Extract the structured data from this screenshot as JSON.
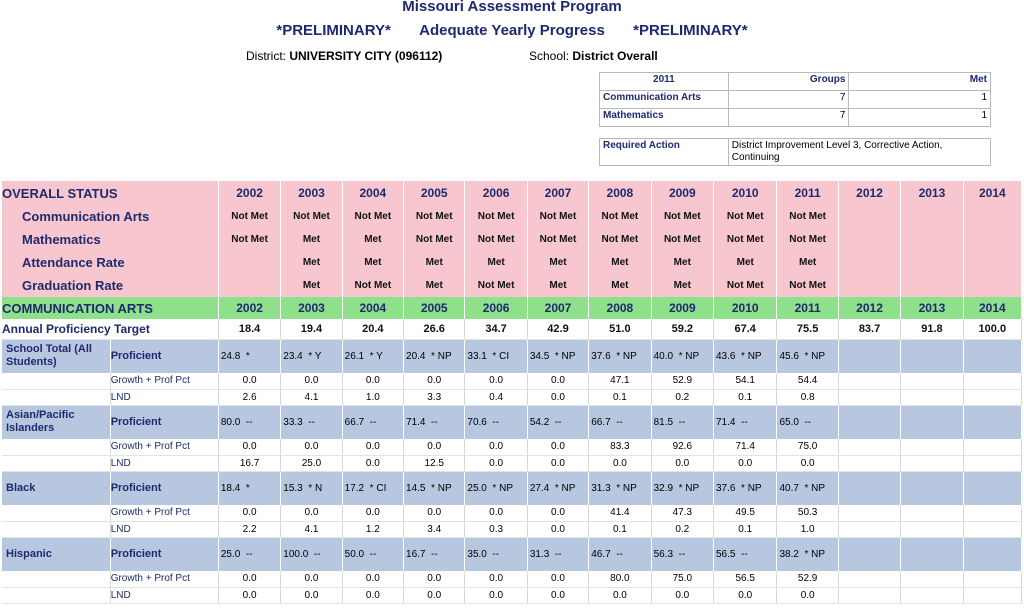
{
  "header": {
    "title": "Missouri Assessment Program",
    "subtitle_left": "*PRELIMINARY*",
    "subtitle_center": "Adequate Yearly Progress",
    "subtitle_right": "*PRELIMINARY*",
    "district_label": "District:",
    "district_value": "UNIVERSITY CITY  (096112)",
    "school_label": "School:",
    "school_value": "District Overall"
  },
  "summary": {
    "year": "2011",
    "groups_header": "Groups",
    "met_header": "Met",
    "rows": [
      {
        "label": "Communication Arts",
        "groups": "7",
        "met": "1"
      },
      {
        "label": "Mathematics",
        "groups": "7",
        "met": "1"
      }
    ],
    "required_action_label": "Required Action",
    "required_action_value": "District Improvement Level 3, Corrective Action, Continuing"
  },
  "years": [
    "2002",
    "2003",
    "2004",
    "2005",
    "2006",
    "2007",
    "2008",
    "2009",
    "2010",
    "2011",
    "2012",
    "2013",
    "2014"
  ],
  "overall": {
    "heading": "OVERALL STATUS",
    "rows": [
      {
        "label": "Communication Arts",
        "values": [
          "Not Met",
          "Not Met",
          "Not Met",
          "Not Met",
          "Not Met",
          "Not Met",
          "Not Met",
          "Not Met",
          "Not Met",
          "Not Met",
          "",
          "",
          ""
        ]
      },
      {
        "label": "Mathematics",
        "values": [
          "Not Met",
          "Met",
          "Met",
          "Not Met",
          "Not Met",
          "Not Met",
          "Not Met",
          "Not Met",
          "Not Met",
          "Not Met",
          "",
          "",
          ""
        ]
      },
      {
        "label": "Attendance Rate",
        "values": [
          "",
          "Met",
          "Met",
          "Met",
          "Met",
          "Met",
          "Met",
          "Met",
          "Met",
          "Met",
          "",
          "",
          ""
        ]
      },
      {
        "label": "Graduation Rate",
        "values": [
          "",
          "Met",
          "Not Met",
          "Met",
          "Not Met",
          "Met",
          "Met",
          "Met",
          "Not Met",
          "Not Met",
          "",
          "",
          ""
        ]
      }
    ]
  },
  "comm_arts": {
    "heading": "COMMUNICATION ARTS",
    "target_label": "Annual Proficiency Target",
    "targets": [
      "18.4",
      "19.4",
      "20.4",
      "26.6",
      "34.7",
      "42.9",
      "51.0",
      "59.2",
      "67.4",
      "75.5",
      "83.7",
      "91.8",
      "100.0"
    ],
    "proficient_label": "Proficient",
    "growth_label": "Growth + Prof Pct",
    "lnd_label": "LND",
    "groups": [
      {
        "name": "School Total (All Students)",
        "proficient": [
          "24.8  *",
          "23.4  * Y",
          "26.1  * Y",
          "20.4  * NP",
          "33.1  * CI",
          "34.5  * NP",
          "37.6  * NP",
          "40.0  * NP",
          "43.6  * NP",
          "45.6  * NP",
          "",
          "",
          ""
        ],
        "growth": [
          "0.0",
          "0.0",
          "0.0",
          "0.0",
          "0.0",
          "0.0",
          "47.1",
          "52.9",
          "54.1",
          "54.4",
          "",
          "",
          ""
        ],
        "lnd": [
          "2.6",
          "4.1",
          "1.0",
          "3.3",
          "0.4",
          "0.0",
          "0.1",
          "0.2",
          "0.1",
          "0.8",
          "",
          "",
          ""
        ]
      },
      {
        "name": "Asian/Pacific Islanders",
        "proficient": [
          "80.0  --",
          "33.3  --",
          "66.7  --",
          "71.4  --",
          "70.6  --",
          "54.2  --",
          "66.7  --",
          "81.5  --",
          "71.4  --",
          "65.0  --",
          "",
          "",
          ""
        ],
        "growth": [
          "0.0",
          "0.0",
          "0.0",
          "0.0",
          "0.0",
          "0.0",
          "83.3",
          "92.6",
          "71.4",
          "75.0",
          "",
          "",
          ""
        ],
        "lnd": [
          "16.7",
          "25.0",
          "0.0",
          "12.5",
          "0.0",
          "0.0",
          "0.0",
          "0.0",
          "0.0",
          "0.0",
          "",
          "",
          ""
        ]
      },
      {
        "name": "Black",
        "proficient": [
          "18.4  *",
          "15.3  * N",
          "17.2  * CI",
          "14.5  * NP",
          "25.0  * NP",
          "27.4  * NP",
          "31.3  * NP",
          "32.9  * NP",
          "37.6  * NP",
          "40.7  * NP",
          "",
          "",
          ""
        ],
        "growth": [
          "0.0",
          "0.0",
          "0.0",
          "0.0",
          "0.0",
          "0.0",
          "41.4",
          "47.3",
          "49.5",
          "50.3",
          "",
          "",
          ""
        ],
        "lnd": [
          "2.2",
          "4.1",
          "1.2",
          "3.4",
          "0.3",
          "0.0",
          "0.1",
          "0.2",
          "0.1",
          "1.0",
          "",
          "",
          ""
        ]
      },
      {
        "name": "Hispanic",
        "proficient": [
          "25.0  --",
          "100.0  --",
          "50.0  --",
          "16.7  --",
          "35.0  --",
          "31.3  --",
          "46.7  --",
          "56.3  --",
          "56.5  --",
          "38.2  * NP",
          "",
          "",
          ""
        ],
        "growth": [
          "0.0",
          "0.0",
          "0.0",
          "0.0",
          "0.0",
          "0.0",
          "80.0",
          "75.0",
          "56.5",
          "52.9",
          "",
          "",
          ""
        ],
        "lnd": [
          "0.0",
          "0.0",
          "0.0",
          "0.0",
          "0.0",
          "0.0",
          "0.0",
          "0.0",
          "0.0",
          "0.0",
          "",
          "",
          ""
        ]
      }
    ]
  }
}
